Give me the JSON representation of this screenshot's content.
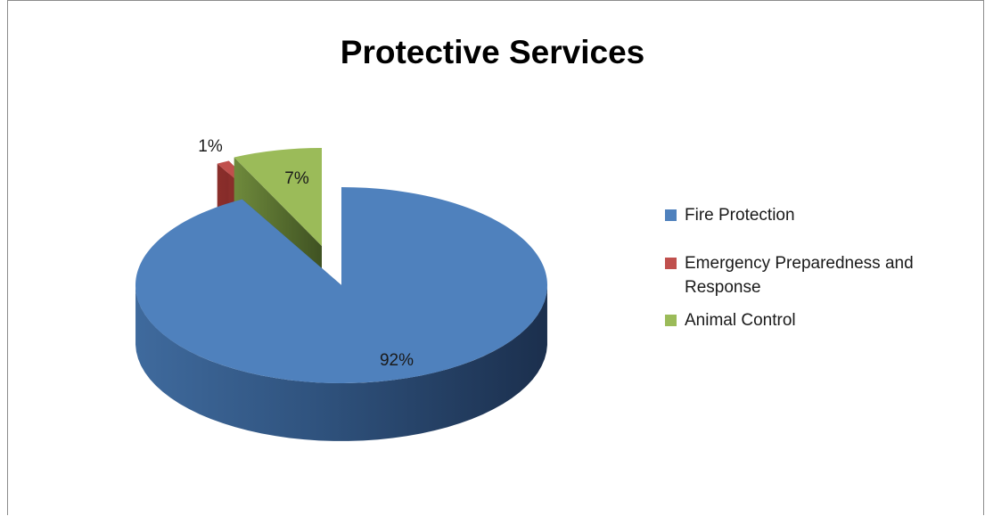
{
  "chart_data": {
    "type": "pie",
    "title": "Protective Services",
    "categories": [
      "Fire Protection",
      "Emergency Preparedness and Response",
      "Animal Control"
    ],
    "values": [
      92,
      1,
      7
    ],
    "data_labels": [
      "92%",
      "1%",
      "7%"
    ],
    "colors": [
      "#4f81bd",
      "#c0504d",
      "#9bbb59"
    ],
    "three_d": true,
    "exploded": [
      "Emergency Preparedness and Response",
      "Animal Control"
    ],
    "legend_position": "right"
  },
  "legend": {
    "items": [
      {
        "label": "Fire Protection",
        "color": "#4f81bd"
      },
      {
        "label": "Emergency Preparedness and Response",
        "color": "#c0504d"
      },
      {
        "label": "Animal Control",
        "color": "#9bbb59"
      }
    ]
  }
}
